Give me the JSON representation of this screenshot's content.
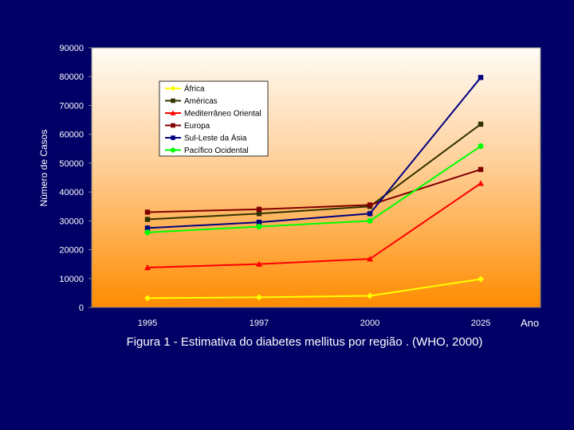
{
  "chart_data": {
    "type": "line",
    "categories": [
      "1995",
      "1997",
      "2000",
      "2025"
    ],
    "ylabel": "Número de Casos",
    "xlabel": "Ano",
    "ylim": [
      0,
      90000
    ],
    "yticks": [
      0,
      10000,
      20000,
      30000,
      40000,
      50000,
      60000,
      70000,
      80000,
      90000
    ],
    "legend_position": "top-center",
    "grid": false,
    "series": [
      {
        "name": "África",
        "color": "#ffff00",
        "marker": "diamond",
        "values": [
          3200,
          3500,
          4000,
          9800
        ]
      },
      {
        "name": "Américas",
        "color": "#333300",
        "marker": "square",
        "values": [
          30500,
          32500,
          35000,
          63500
        ]
      },
      {
        "name": "Mediterrâneo Oriental",
        "color": "#ff0000",
        "marker": "triangle",
        "values": [
          13800,
          15000,
          16800,
          43000
        ]
      },
      {
        "name": "Europa",
        "color": "#800000",
        "marker": "square",
        "values": [
          33000,
          34000,
          35500,
          47800
        ]
      },
      {
        "name": "Sul-Leste da  Ásia",
        "color": "#000080",
        "marker": "square",
        "values": [
          27500,
          29500,
          32500,
          79700
        ]
      },
      {
        "name": "Pacífico Ocidental",
        "color": "#00ff00",
        "marker": "circle",
        "values": [
          26000,
          28000,
          30000,
          55900
        ]
      }
    ]
  },
  "caption": "Figura 1 - Estimativa do diabetes mellitus por região . (WHO, 2000)"
}
